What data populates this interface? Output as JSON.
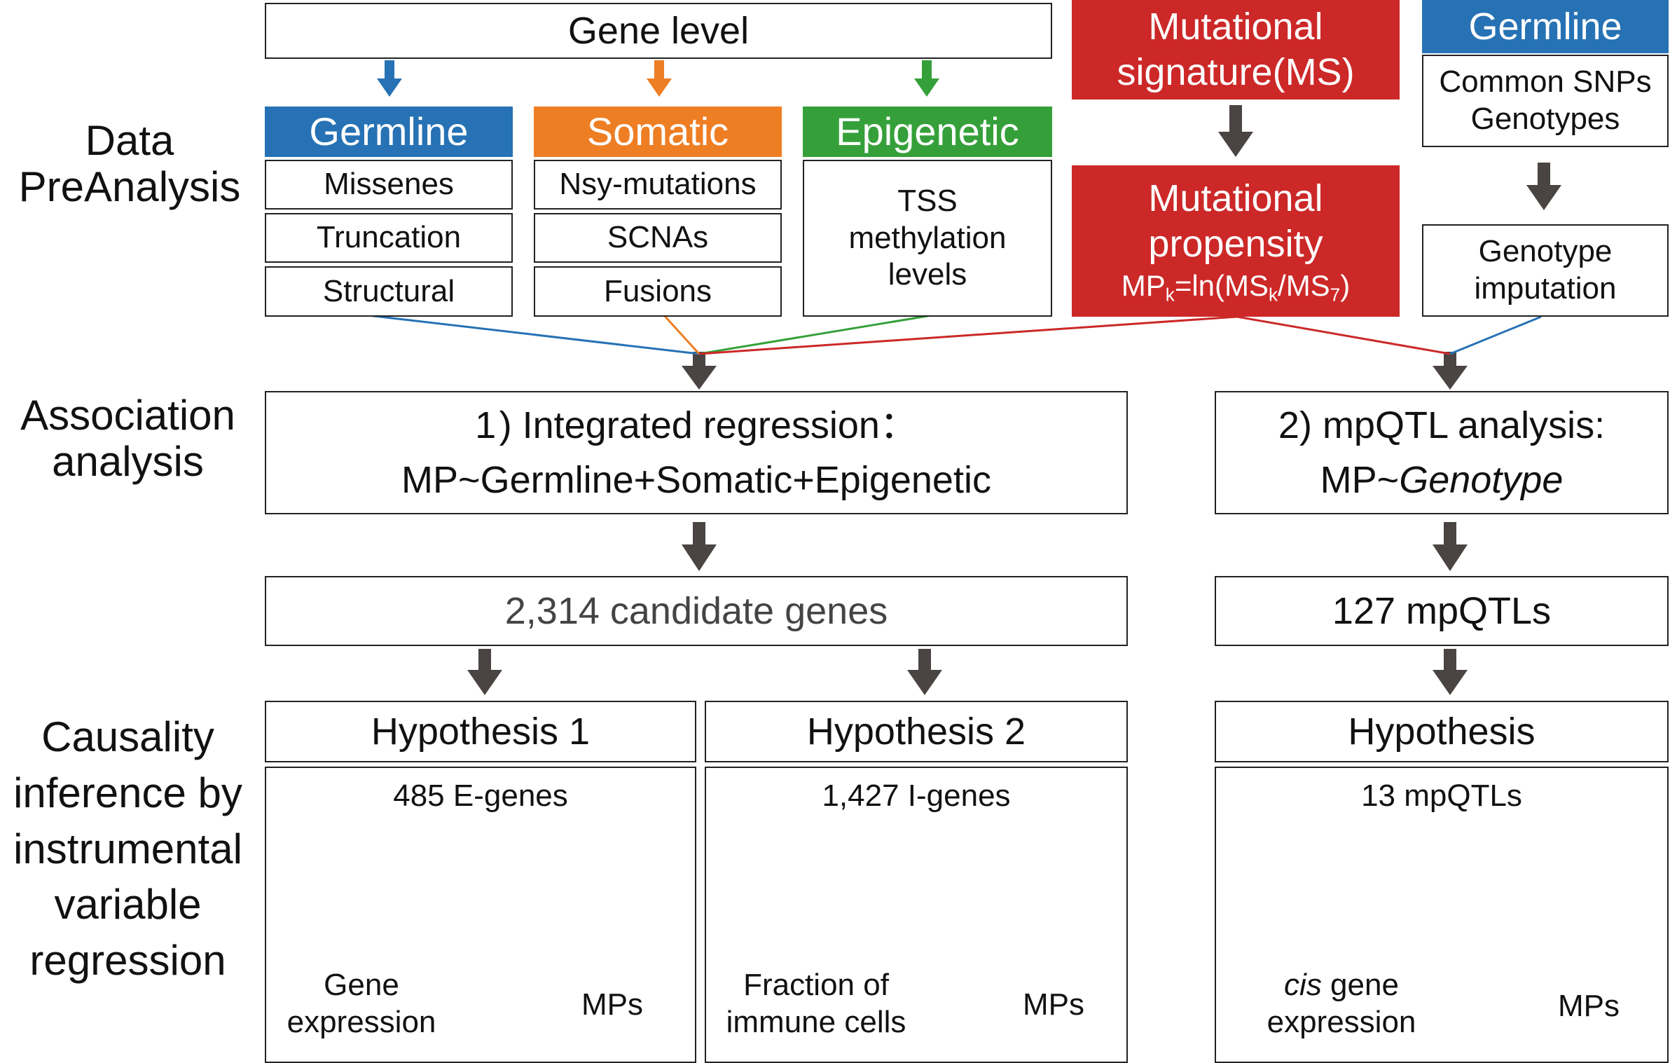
{
  "left_labels": {
    "preanalysis": [
      "Data",
      "PreAnalysis"
    ],
    "association": [
      "Association",
      "analysis"
    ],
    "causality": [
      "Causality",
      "inference by",
      "instrumental",
      "variable",
      "regression"
    ]
  },
  "gene_level": {
    "title": "Gene level"
  },
  "germline": {
    "header": "Germline",
    "items": [
      "Missenes",
      "Truncation",
      "Structural"
    ]
  },
  "somatic": {
    "header": "Somatic",
    "items": [
      "Nsy-mutations",
      "SCNAs",
      "Fusions"
    ]
  },
  "epigenetic": {
    "header": "Epigenetic",
    "lines": [
      "TSS",
      "methylation",
      "levels"
    ]
  },
  "mutational_signature": {
    "lines": [
      "Mutational",
      "signature(MS)"
    ]
  },
  "mutational_propensity": {
    "lines": [
      "Mutational",
      "propensity"
    ],
    "formula": {
      "p1": "MP",
      "s1": "k",
      "p2": "=ln(MS",
      "s2": "k",
      "p3": "/MS",
      "s3": "7",
      "p4": ")"
    }
  },
  "germline_right": {
    "header": "Germline",
    "lines": [
      "Common SNPs",
      "Genotypes"
    ]
  },
  "genotype_imputation": {
    "lines": [
      "Genotype",
      "imputation"
    ]
  },
  "integrated_regression": {
    "line1": "1 ) Integrated regression：",
    "line2": "MP~Germline+Somatic+Epigenetic"
  },
  "mpqtl_analysis": {
    "line1": "2) mpQTL analysis:",
    "line2_prefix": "MP~",
    "line2_italic": "Genotype"
  },
  "candidate_genes": {
    "text": "2,314 candidate genes"
  },
  "mpqtls_127": {
    "text": "127 mpQTLs"
  },
  "hypothesis1": {
    "title": "Hypothesis 1",
    "count": "485 E-genes",
    "mediator": [
      "Gene",
      "expression"
    ],
    "outcome": "MPs"
  },
  "hypothesis2": {
    "title": "Hypothesis 2",
    "count": "1,427 I-genes",
    "mediator": [
      "Fraction of",
      "immune cells"
    ],
    "outcome": "MPs"
  },
  "hypothesis3": {
    "title": "Hypothesis",
    "count": "13 mpQTLs",
    "mediator_italic": "cis",
    "mediator_rest": " gene",
    "mediator_line2": "expression",
    "outcome": "MPs"
  },
  "colors": {
    "germline": "#2672b4",
    "somatic": "#ee7e24",
    "epigenetic": "#35a03a",
    "mutational": "#cc2828",
    "arrow": "#4a4443",
    "border": "#222222"
  }
}
